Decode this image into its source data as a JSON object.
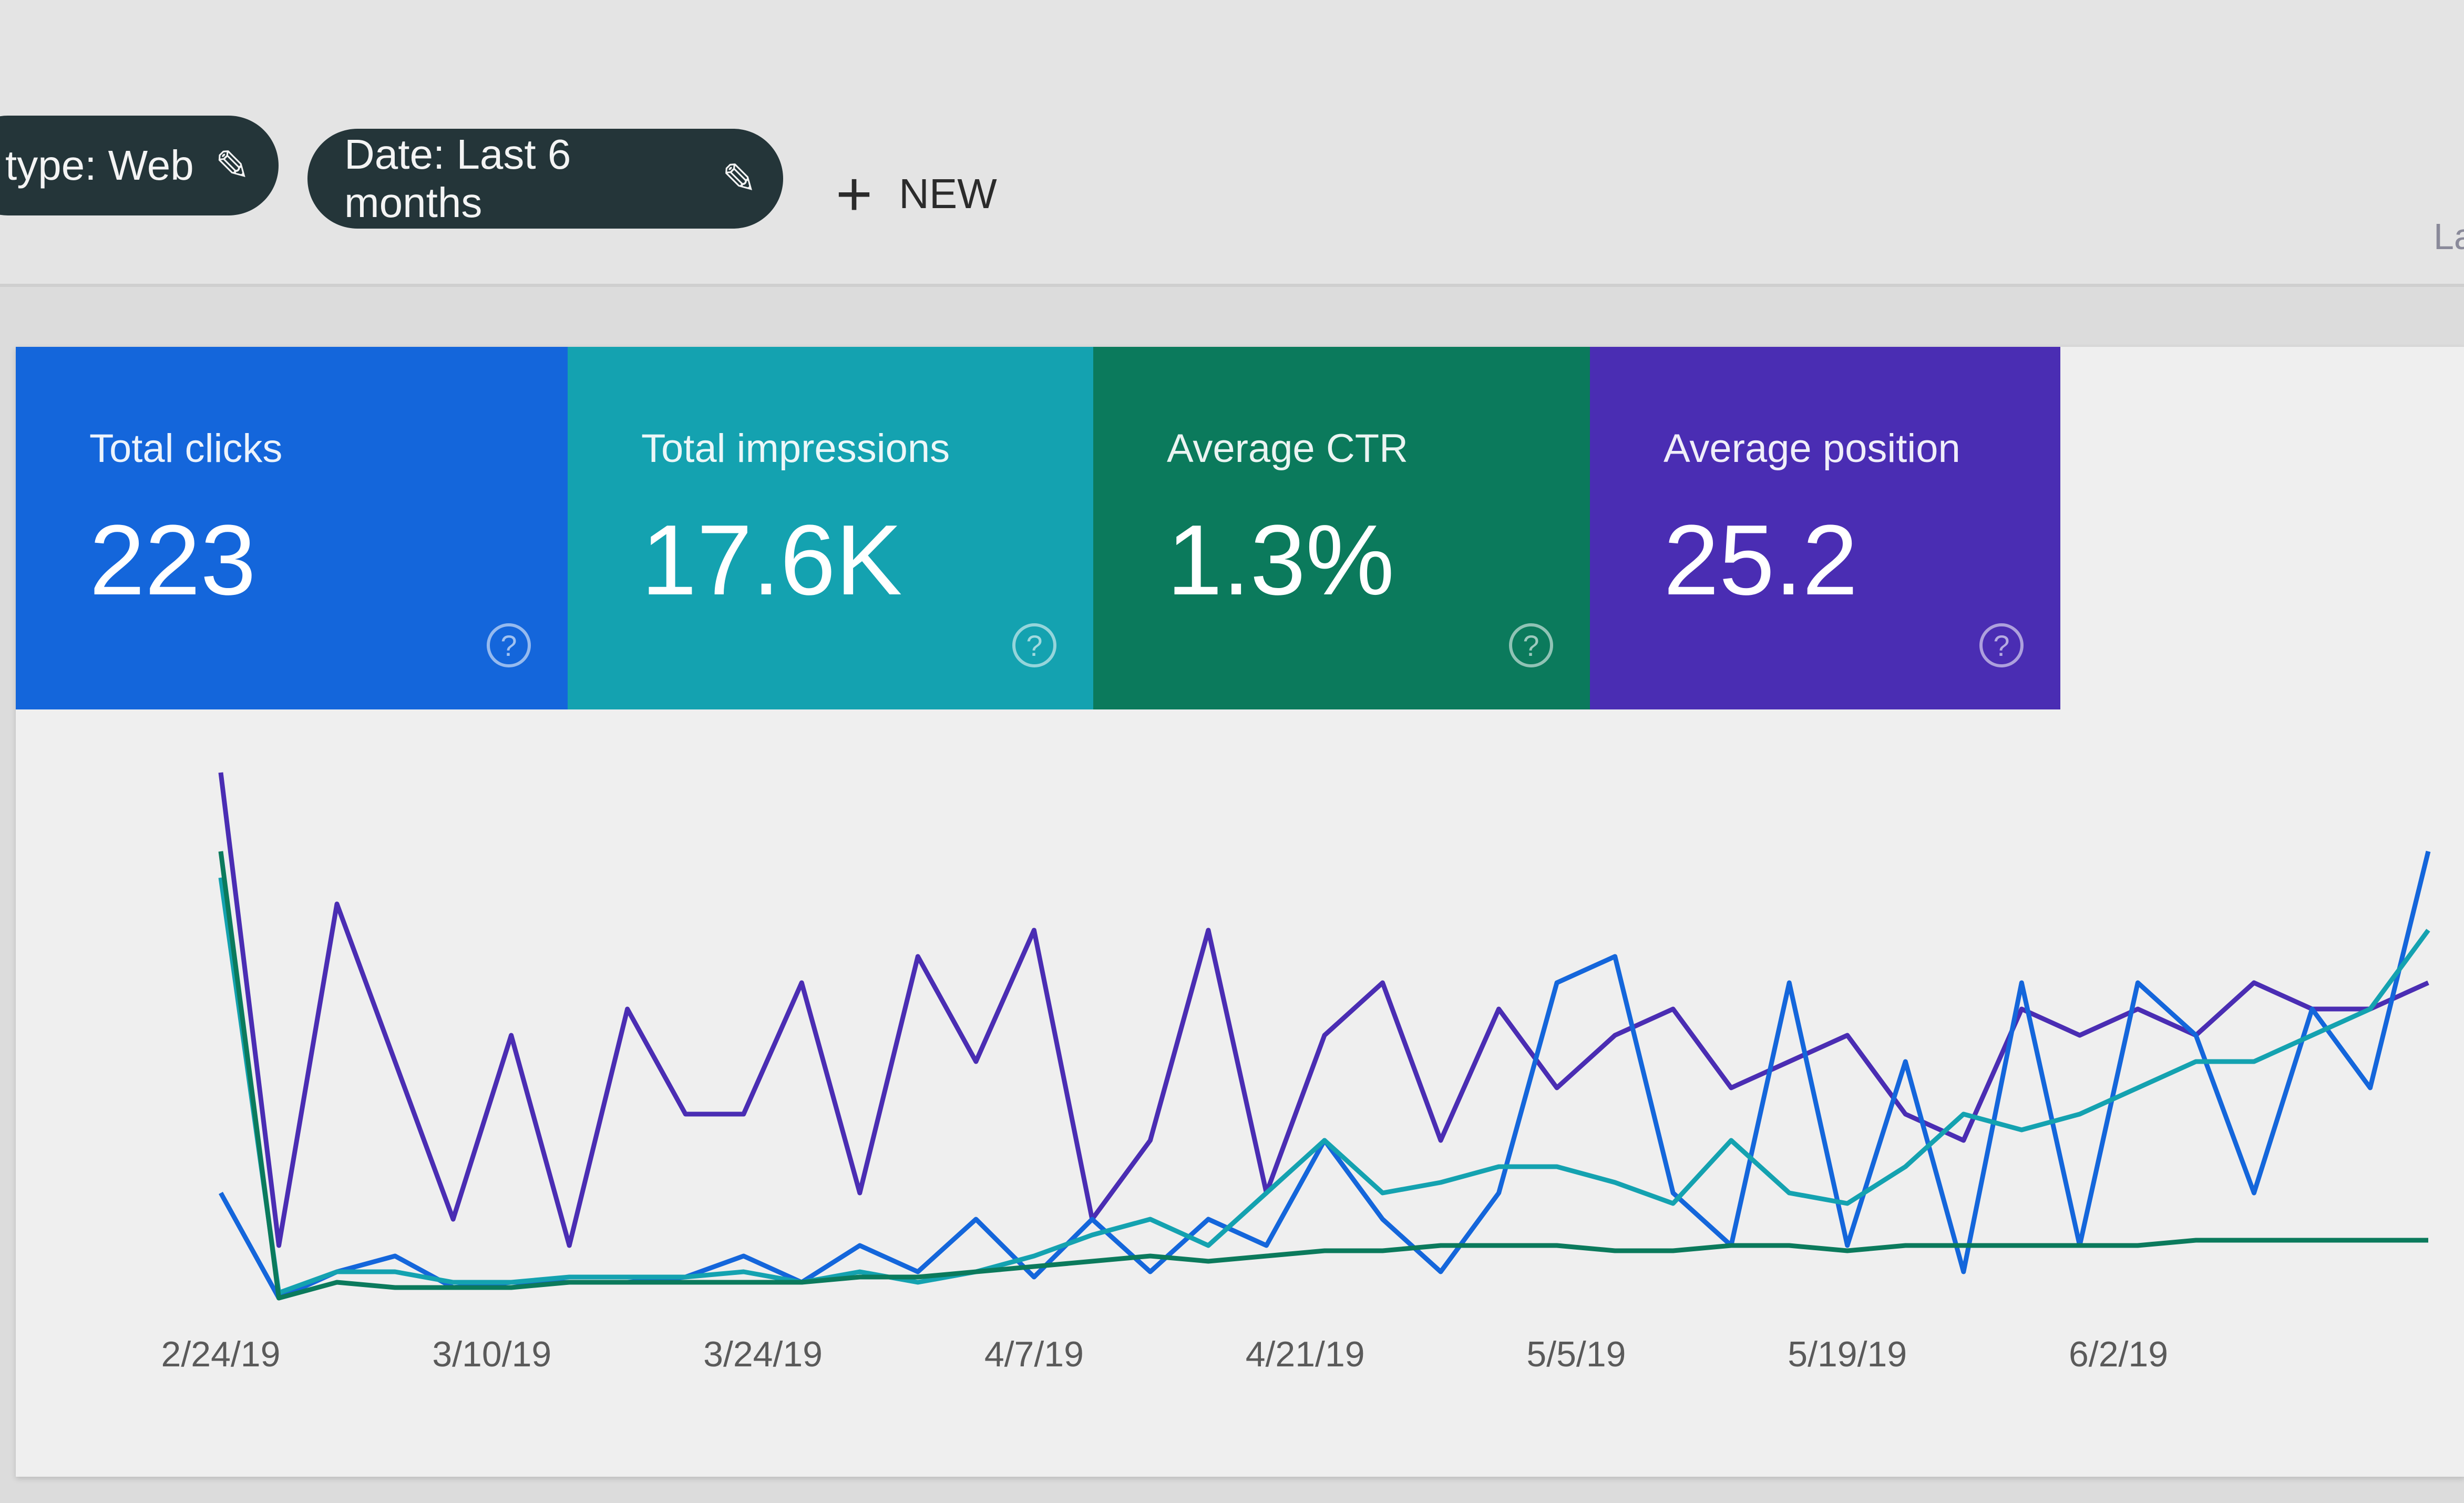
{
  "filters": {
    "type_chip": "type: Web",
    "date_chip": "Date: Last 6 months",
    "new_button": "NEW",
    "cutoff_text": "La",
    "icons": {
      "edit": "pencil-icon",
      "add": "plus-icon",
      "help": "help-circle-icon"
    }
  },
  "cards": [
    {
      "label": "Total clicks",
      "value": "223",
      "color": "#1466db"
    },
    {
      "label": "Total impressions",
      "value": "17.6K",
      "color": "#14a2b0"
    },
    {
      "label": "Average CTR",
      "value": "1.3%",
      "color": "#0b7a5c"
    },
    {
      "label": "Average position",
      "value": "25.2",
      "color": "#4a2db3"
    }
  ],
  "chart_data": {
    "type": "line",
    "x_tick_labels": [
      "2/24/19",
      "3/10/19",
      "3/24/19",
      "4/7/19",
      "4/21/19",
      "5/5/19",
      "5/19/19",
      "6/2/19"
    ],
    "x": [
      "2/24",
      "2/27",
      "3/2",
      "3/5",
      "3/8",
      "3/11",
      "3/14",
      "3/17",
      "3/20",
      "3/23",
      "3/26",
      "3/29",
      "4/1",
      "4/4",
      "4/7",
      "4/10",
      "4/13",
      "4/16",
      "4/19",
      "4/22",
      "4/25",
      "4/28",
      "5/1",
      "5/4",
      "5/7",
      "5/10",
      "5/13",
      "5/16",
      "5/19",
      "5/22",
      "5/25",
      "5/28",
      "5/31",
      "6/3",
      "6/6",
      "6/9",
      "6/12",
      "6/15",
      "6/18"
    ],
    "y_scale": "relative (no y-axis printed)",
    "grid": false,
    "series": [
      {
        "color": "#4a2db3",
        "values": [
          100,
          10,
          75,
          45,
          15,
          50,
          10,
          55,
          35,
          35,
          60,
          20,
          65,
          45,
          70,
          15,
          30,
          70,
          20,
          50,
          60,
          30,
          55,
          40,
          50,
          55,
          40,
          45,
          50,
          35,
          30,
          55,
          50,
          55,
          50,
          60,
          55,
          55,
          60
        ]
      },
      {
        "color": "#1466db",
        "values": [
          20,
          0,
          5,
          8,
          2,
          3,
          3,
          3,
          4,
          8,
          3,
          10,
          5,
          15,
          4,
          15,
          5,
          15,
          10,
          30,
          15,
          5,
          20,
          60,
          65,
          20,
          10,
          60,
          10,
          45,
          5,
          60,
          10,
          60,
          50,
          20,
          55,
          40,
          85
        ]
      },
      {
        "color": "#14a2b0",
        "values": [
          80,
          1,
          5,
          5,
          3,
          3,
          4,
          4,
          4,
          5,
          3,
          5,
          3,
          5,
          8,
          12,
          15,
          10,
          20,
          30,
          20,
          22,
          25,
          25,
          22,
          18,
          30,
          20,
          18,
          25,
          35,
          32,
          35,
          40,
          45,
          45,
          50,
          55,
          70
        ]
      },
      {
        "color": "#0b7a5c",
        "values": [
          85,
          0,
          3,
          2,
          2,
          2,
          3,
          3,
          3,
          3,
          3,
          4,
          4,
          5,
          6,
          7,
          8,
          7,
          8,
          9,
          9,
          10,
          10,
          10,
          9,
          9,
          10,
          10,
          9,
          10,
          10,
          10,
          10,
          10,
          11,
          11,
          11,
          11,
          11
        ]
      }
    ]
  }
}
